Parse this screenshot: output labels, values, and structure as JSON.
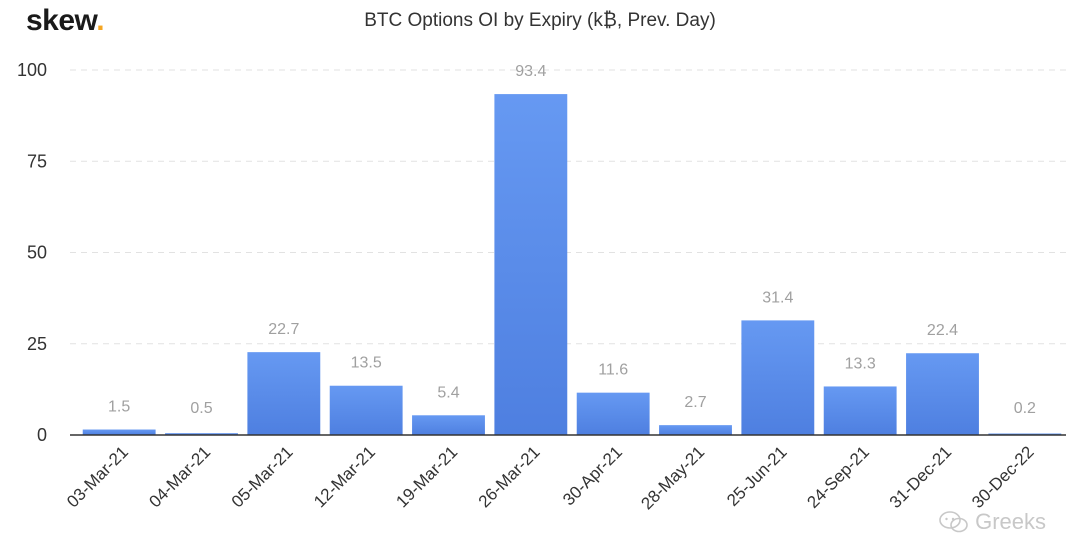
{
  "logo": {
    "text": "skew",
    "dot": "."
  },
  "watermark": {
    "text": "Greeks"
  },
  "chart_data": {
    "type": "bar",
    "title": "BTC Options OI by Expiry (k₿, Prev. Day)",
    "xlabel": "",
    "ylabel": "",
    "ylim": [
      0,
      100
    ],
    "yticks": [
      0,
      25,
      50,
      75,
      100
    ],
    "grid": true,
    "categories": [
      "03-Mar-21",
      "04-Mar-21",
      "05-Mar-21",
      "12-Mar-21",
      "19-Mar-21",
      "26-Mar-21",
      "30-Apr-21",
      "28-May-21",
      "25-Jun-21",
      "24-Sep-21",
      "31-Dec-21",
      "30-Dec-22"
    ],
    "values": [
      1.5,
      0.5,
      22.7,
      13.5,
      5.4,
      93.4,
      11.6,
      2.7,
      31.4,
      13.3,
      22.4,
      0.2
    ],
    "data_labels": [
      "1.5",
      "0.5",
      "22.7",
      "13.5",
      "5.4",
      "93.4",
      "11.6",
      "2.7",
      "31.4",
      "13.3",
      "22.4",
      "0.2"
    ],
    "colors": {
      "bar_top": "#6699f2",
      "bar_bottom": "#4e7fe0",
      "label": "#a0a0a0",
      "grid": "#e2e2e2",
      "axis": "#333333"
    }
  }
}
